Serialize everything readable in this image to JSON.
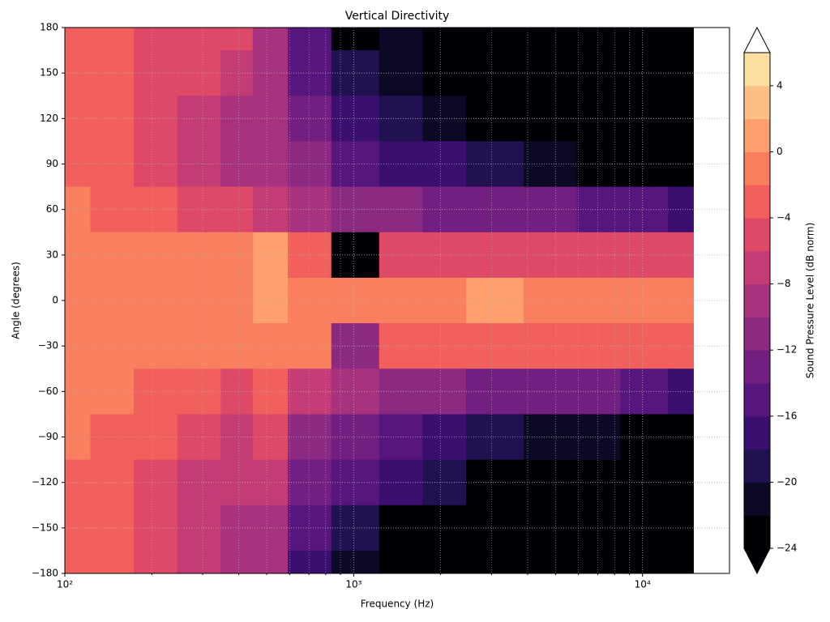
{
  "chart_data": {
    "type": "contour",
    "title": "Vertical Directivity",
    "xlabel": "Frequency (Hz)",
    "ylabel": "Angle (degrees)",
    "x": [
      100,
      150,
      200,
      300,
      400,
      500,
      700,
      1000,
      1500,
      2000,
      3000,
      5000,
      7000,
      10000,
      15000
    ],
    "y": [
      180,
      150,
      120,
      90,
      60,
      30,
      0,
      -30,
      -60,
      -90,
      -120,
      -150,
      -180
    ],
    "z": [
      [
        -3,
        -4,
        -5,
        -6,
        -6,
        -10,
        -16,
        -24,
        -22,
        -26,
        -30,
        -30,
        -30,
        -30,
        -30
      ],
      [
        -3,
        -4,
        -5,
        -6,
        -7,
        -10,
        -15,
        -20,
        -22,
        -26,
        -30,
        -30,
        -30,
        -30,
        -30
      ],
      [
        -3,
        -4,
        -5,
        -7,
        -9,
        -10,
        -13,
        -17,
        -20,
        -22,
        -25,
        -28,
        -30,
        -30,
        -30
      ],
      [
        -3,
        -4,
        -5,
        -7,
        -9,
        -10,
        -12,
        -15,
        -17,
        -18,
        -19,
        -21,
        -24,
        -28,
        -30
      ],
      [
        -2,
        -3,
        -4,
        -5,
        -6,
        -7,
        -9,
        -11,
        -12,
        -13,
        -13,
        -14,
        -15,
        -16,
        -17
      ],
      [
        -2,
        -2,
        -2,
        -2,
        -1,
        0,
        -3,
        -24,
        -6,
        -6,
        -6,
        -6,
        -6,
        -6,
        -6
      ],
      [
        -1,
        -1,
        -1,
        -1,
        -1,
        0,
        -1,
        -1,
        -1,
        -1,
        0,
        -1,
        -1,
        -1,
        -1
      ],
      [
        -2,
        -2,
        -1,
        -1,
        -1,
        -2,
        -2,
        -12,
        -3,
        -3,
        -3,
        -3,
        -3,
        -3,
        -3
      ],
      [
        -2,
        -2,
        -3,
        -4,
        -6,
        -4,
        -7,
        -10,
        -12,
        -12,
        -13,
        -14,
        -14,
        -15,
        -17
      ],
      [
        -2,
        -3,
        -4,
        -6,
        -7,
        -6,
        -12,
        -14,
        -16,
        -18,
        -20,
        -22,
        -22,
        -24,
        -26
      ],
      [
        -3,
        -3,
        -5,
        -7,
        -8,
        -8,
        -14,
        -16,
        -17,
        -20,
        -26,
        -30,
        -30,
        -30,
        -30
      ],
      [
        -3,
        -4,
        -5,
        -7,
        -9,
        -10,
        -16,
        -20,
        -24,
        -26,
        -30,
        -30,
        -30,
        -30,
        -30
      ],
      [
        -3,
        -4,
        -5,
        -7,
        -9,
        -10,
        -17,
        -22,
        -26,
        -28,
        -30,
        -30,
        -30,
        -30,
        -30
      ]
    ],
    "xlim": [
      100,
      20000
    ],
    "xscale": "log",
    "xticks": [
      {
        "value": 100,
        "label": "10²"
      },
      {
        "value": 1000,
        "label": "10³"
      },
      {
        "value": 10000,
        "label": "10⁴"
      }
    ],
    "xminorticks": [
      200,
      300,
      400,
      500,
      600,
      700,
      800,
      900,
      2000,
      3000,
      4000,
      5000,
      6000,
      7000,
      8000,
      9000
    ],
    "ylim": [
      -180,
      180
    ],
    "yticks": [
      {
        "value": -180,
        "label": "−180"
      },
      {
        "value": -150,
        "label": "−150"
      },
      {
        "value": -120,
        "label": "−120"
      },
      {
        "value": -90,
        "label": "−90"
      },
      {
        "value": -60,
        "label": "−60"
      },
      {
        "value": -30,
        "label": "−30"
      },
      0,
      30,
      60,
      90,
      120,
      150,
      180
    ],
    "grid": true,
    "colorbar": {
      "label": "Sound Pressure Level (dB norm)",
      "clim": [
        -24,
        6
      ],
      "levels": [
        -24,
        -22,
        -20,
        -18,
        -16,
        -14,
        -12,
        -10,
        -8,
        -6,
        -4,
        -2,
        0,
        2,
        4,
        6
      ],
      "colors": [
        "#000004",
        "#0c0926",
        "#221150",
        "#3b0f70",
        "#57157e",
        "#721f81",
        "#8c2981",
        "#a8327d",
        "#c43c75",
        "#de4968",
        "#f1605d",
        "#fa7f5e",
        "#fe9f6d",
        "#febf84",
        "#fcdfa0"
      ],
      "under_color": "#000004",
      "over_color": "#ffffff",
      "ticks": [
        {
          "value": -24,
          "label": "−24"
        },
        {
          "value": -20,
          "label": "−20"
        },
        {
          "value": -16,
          "label": "−16"
        },
        {
          "value": -12,
          "label": "−12"
        },
        {
          "value": -8,
          "label": "−8"
        },
        {
          "value": -4,
          "label": "−4"
        },
        0,
        4
      ]
    }
  }
}
